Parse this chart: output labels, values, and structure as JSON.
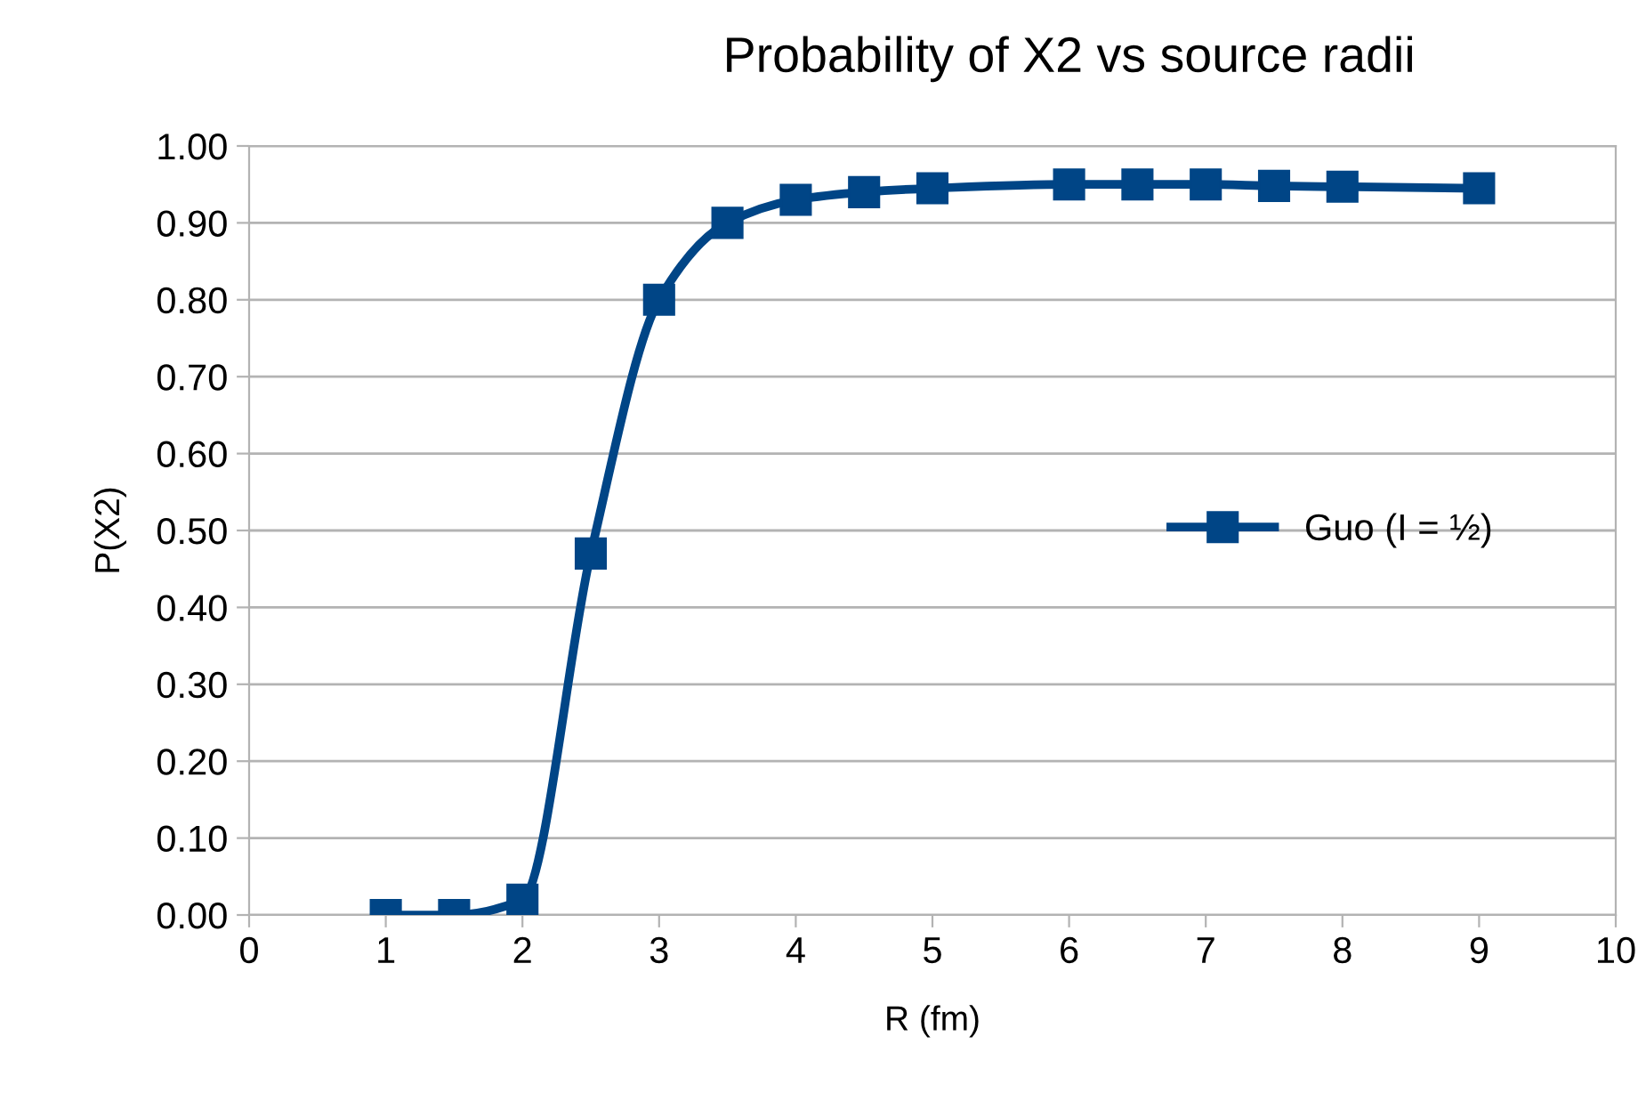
{
  "chart_data": {
    "type": "line",
    "title": "Probability of X2 vs source radii",
    "xlabel": "R (fm)",
    "ylabel": "P(X2)",
    "x": [
      1,
      1.5,
      2,
      2.5,
      3,
      3.5,
      4,
      4.5,
      5,
      6,
      6.5,
      7,
      7.5,
      8,
      9
    ],
    "series": [
      {
        "name": "Guo (I = ½)",
        "color": "#004586",
        "values": [
          0.0,
          0.0,
          0.02,
          0.47,
          0.8,
          0.9,
          0.93,
          0.94,
          0.945,
          0.95,
          0.95,
          0.95,
          0.948,
          0.947,
          0.945
        ]
      }
    ],
    "xlim": [
      0,
      10
    ],
    "xticks": [
      0,
      1,
      2,
      3,
      4,
      5,
      6,
      7,
      8,
      9,
      10
    ],
    "ylim": [
      0,
      1
    ],
    "yticks": [
      {
        "value": 0,
        "label": "0.00"
      },
      {
        "value": 0.1,
        "label": "0.10"
      },
      {
        "value": 0.2,
        "label": "0.20"
      },
      {
        "value": 0.3,
        "label": "0.30"
      },
      {
        "value": 0.4,
        "label": "0.40"
      },
      {
        "value": 0.5,
        "label": "0.50"
      },
      {
        "value": 0.6,
        "label": "0.60"
      },
      {
        "value": 0.7,
        "label": "0.70"
      },
      {
        "value": 0.8,
        "label": "0.80"
      },
      {
        "value": 0.9,
        "label": "0.90"
      },
      {
        "value": 1,
        "label": "1.00"
      }
    ],
    "grid": "y",
    "legend": "right",
    "marker": "square",
    "line_style": "solid"
  }
}
